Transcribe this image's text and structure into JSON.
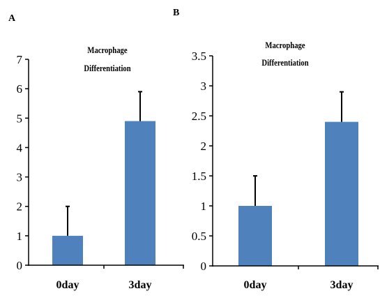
{
  "chart_data": [
    {
      "panel": "A",
      "type": "bar",
      "title": "Macrophage Differentiation",
      "title_lines": [
        "Macrophage",
        "Differentiation"
      ],
      "categories": [
        "0day",
        "3day"
      ],
      "values": [
        1.0,
        4.9
      ],
      "error_plus": [
        1.0,
        1.0
      ],
      "ylim": [
        0,
        7
      ],
      "yticks": [
        0,
        1,
        2,
        3,
        4,
        5,
        6,
        7
      ],
      "ytick_labels": [
        "0",
        "1",
        "2",
        "3",
        "4",
        "5",
        "6",
        "7"
      ],
      "xlabel": "",
      "ylabel": "",
      "grid": false,
      "bar_color": "#4f81bd"
    },
    {
      "panel": "B",
      "type": "bar",
      "title": "Macrophage Differentiation",
      "title_lines": [
        "Macrophage",
        "Differentiation"
      ],
      "categories": [
        "0day",
        "3day"
      ],
      "values": [
        1.0,
        2.4
      ],
      "error_plus": [
        0.5,
        0.5
      ],
      "ylim": [
        0,
        3.5
      ],
      "yticks": [
        0,
        0.5,
        1,
        1.5,
        2,
        2.5,
        3,
        3.5
      ],
      "ytick_labels": [
        "0",
        "0.5",
        "1",
        "1.5",
        "2",
        "2.5",
        "3",
        "3.5"
      ],
      "xlabel": "",
      "ylabel": "",
      "grid": false,
      "bar_color": "#4f81bd"
    }
  ]
}
